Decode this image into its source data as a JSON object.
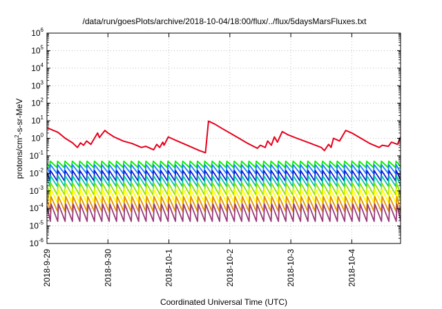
{
  "chart_data": {
    "type": "line",
    "title": "/data/run/goesPlots/archive/2018-10-04/18:00/flux/../flux/5daysMarsFluxes.txt",
    "xlabel": "Coordinated Universal Time (UTC)",
    "ylabel_parts": [
      "protons/cm",
      "2",
      "-s-sr-MeV"
    ],
    "xlim": [
      0,
      5.8
    ],
    "ylim": [
      1e-06,
      1000000.0
    ],
    "yscale": "log",
    "grid": true,
    "x_ticks": [
      {
        "x": 0,
        "label": "2018-9-29"
      },
      {
        "x": 1,
        "label": "2018-9-30"
      },
      {
        "x": 2,
        "label": "2018-10-1"
      },
      {
        "x": 3,
        "label": "2018-10-2"
      },
      {
        "x": 4,
        "label": "2018-10-3"
      },
      {
        "x": 5,
        "label": "2018-10-4"
      }
    ],
    "y_ticks": [
      {
        "exp": "-6",
        "value": 1e-06
      },
      {
        "exp": "-5",
        "value": 1e-05
      },
      {
        "exp": "-4",
        "value": 0.0001
      },
      {
        "exp": "-3",
        "value": 0.001
      },
      {
        "exp": "-2",
        "value": 0.01
      },
      {
        "exp": "-1",
        "value": 0.1
      },
      {
        "exp": "0",
        "value": 1
      },
      {
        "exp": "1",
        "value": 10
      },
      {
        "exp": "2",
        "value": 100
      },
      {
        "exp": "3",
        "value": 1000
      },
      {
        "exp": "4",
        "value": 10000
      },
      {
        "exp": "5",
        "value": 100000
      },
      {
        "exp": "6",
        "value": 1000000
      }
    ],
    "tick_base": "10",
    "series": [
      {
        "color": "#e8001c",
        "x": [
          0,
          0.18,
          0.3,
          0.42,
          0.5,
          0.55,
          0.6,
          0.65,
          0.72,
          0.77,
          0.83,
          0.86,
          0.95,
          1.0,
          1.1,
          1.25,
          1.4,
          1.55,
          1.62,
          1.75,
          1.8,
          1.85,
          1.9,
          1.92,
          1.99,
          2.1,
          2.3,
          2.5,
          2.6,
          2.65,
          2.75,
          2.88,
          3.0,
          3.15,
          3.3,
          3.45,
          3.5,
          3.58,
          3.62,
          3.68,
          3.73,
          3.78,
          3.86,
          3.95,
          4.1,
          4.3,
          4.5,
          4.55,
          4.62,
          4.66,
          4.7,
          4.8,
          4.9,
          5.0,
          5.15,
          5.3,
          5.45,
          5.5,
          5.6,
          5.65,
          5.75,
          5.8
        ],
        "y": [
          4,
          2.2,
          1.0,
          0.55,
          0.3,
          0.55,
          0.4,
          0.7,
          0.45,
          0.9,
          2.0,
          1.1,
          2.8,
          2.0,
          1.2,
          0.7,
          0.5,
          0.3,
          0.35,
          0.22,
          0.45,
          0.3,
          0.6,
          0.4,
          1.2,
          0.8,
          0.4,
          0.2,
          0.15,
          9.5,
          6.5,
          3.5,
          2.0,
          1.0,
          0.5,
          0.27,
          0.4,
          0.3,
          0.7,
          0.4,
          1.2,
          0.6,
          2.4,
          1.6,
          1.0,
          0.55,
          0.3,
          0.2,
          0.45,
          0.3,
          1.0,
          0.7,
          2.8,
          2.0,
          1.0,
          0.5,
          0.3,
          0.4,
          0.35,
          0.6,
          0.45,
          1.2
        ]
      },
      {
        "color": "#00ee00",
        "base": 0.026,
        "amp": 1.9
      },
      {
        "color": "#1a7fff",
        "base": 0.012,
        "amp": 2.6
      },
      {
        "color": "#0a1ed6",
        "base": 0.0045,
        "amp": 3.2
      },
      {
        "color": "#00c7a0",
        "base": 0.0022,
        "amp": 3.2
      },
      {
        "color": "#8fe000",
        "base": 0.0007,
        "amp": 4
      },
      {
        "color": "#ffff00",
        "base": 0.00025,
        "amp": 5
      },
      {
        "color": "#e39000",
        "base": 8e-05,
        "amp": 6
      },
      {
        "color": "#9a3a7a",
        "base": 2.2e-05,
        "amp": 8
      }
    ],
    "oscillation_period_days": 0.1207,
    "frame_color": "#000000",
    "grid_color": "#b0b0b0"
  }
}
